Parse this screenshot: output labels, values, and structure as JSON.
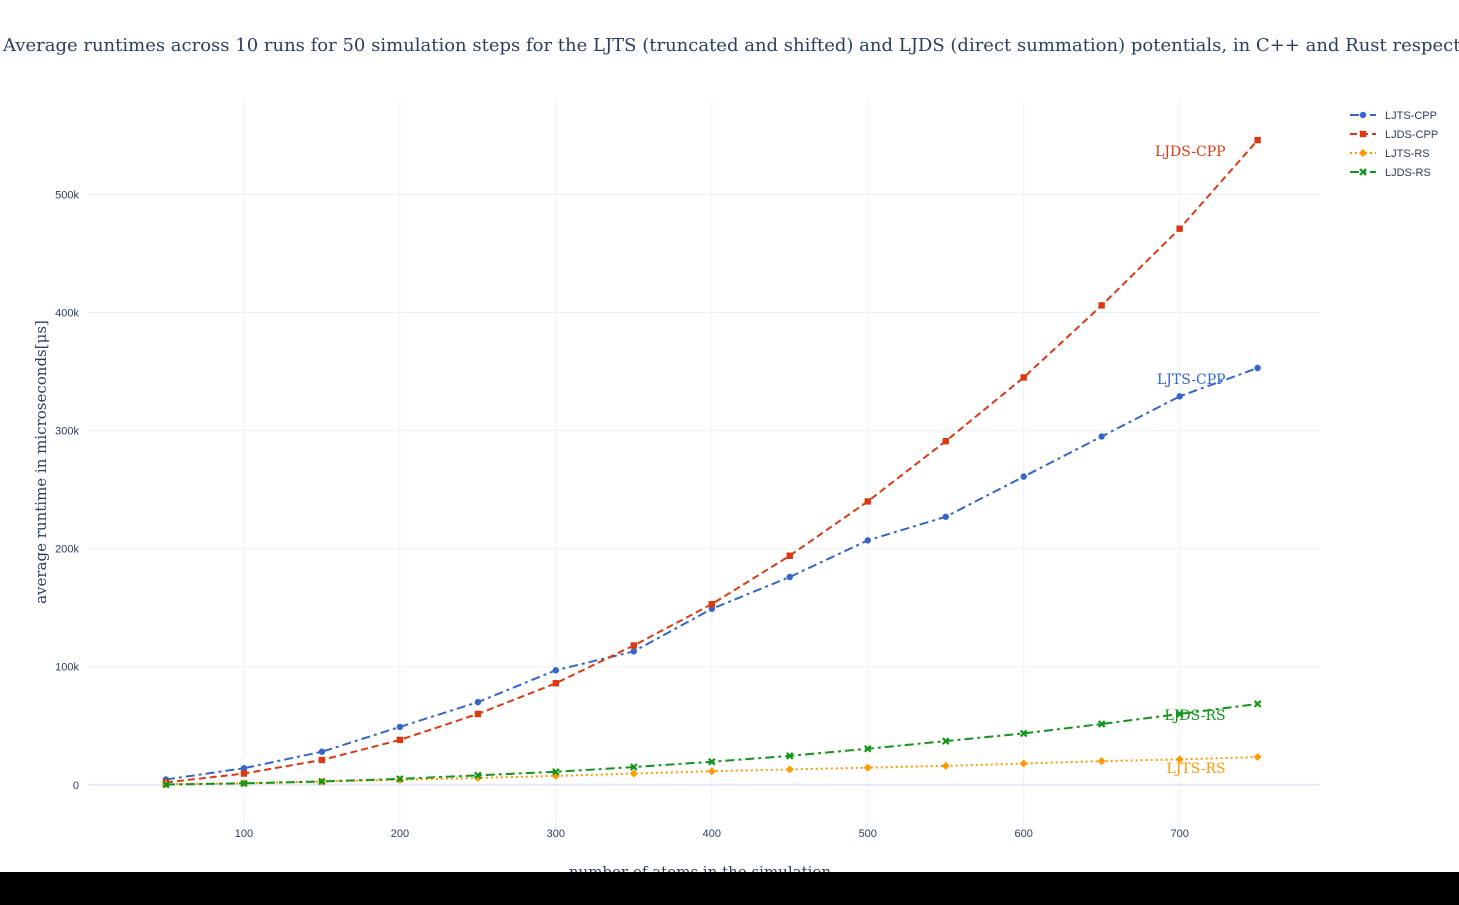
{
  "chart_data": {
    "type": "line",
    "title": "Average runtimes across 10 runs for 50 simulation steps for the LJTS (truncated and shifted) and LJDS (direct summation) potentials, in C++ and Rust respectively",
    "xlabel": "number of atoms in the simulation",
    "ylabel": "average runtime in microseconds[μs]",
    "xlim": [
      0,
      790
    ],
    "ylim": [
      -40000,
      580000
    ],
    "x_ticks": [
      100,
      200,
      300,
      400,
      500,
      600,
      700
    ],
    "y_ticks": [
      0,
      100000,
      200000,
      300000,
      400000,
      500000
    ],
    "y_tick_labels": [
      "0",
      "100k",
      "200k",
      "300k",
      "400k",
      "500k"
    ],
    "grid": true,
    "legend_position": "top-right",
    "x": [
      50,
      100,
      150,
      200,
      250,
      300,
      350,
      400,
      450,
      500,
      550,
      600,
      650,
      700,
      750
    ],
    "series": [
      {
        "name": "LJTS-CPP",
        "color": "#3366cc",
        "dash": "dashdot",
        "marker": "circle",
        "values": [
          4500,
          14000,
          28000,
          49000,
          70000,
          97000,
          113000,
          149000,
          176000,
          207000,
          227000,
          261000,
          295000,
          329000,
          353000
        ]
      },
      {
        "name": "LJDS-CPP",
        "color": "#dc3912",
        "dash": "dash",
        "marker": "square",
        "values": [
          2000,
          9500,
          21000,
          38000,
          60000,
          86000,
          118000,
          153000,
          194000,
          240000,
          291000,
          345000,
          406000,
          471000,
          546000
        ]
      },
      {
        "name": "LJTS-RS",
        "color": "#ff9900",
        "dash": "dot",
        "marker": "diamond",
        "values": [
          400,
          1300,
          2800,
          4200,
          5800,
          7500,
          9500,
          11500,
          13000,
          14500,
          16000,
          18000,
          20000,
          21500,
          23500
        ]
      },
      {
        "name": "LJDS-RS",
        "color": "#109618",
        "dash": "dashdot",
        "marker": "x",
        "values": [
          200,
          1200,
          2800,
          5000,
          8000,
          11000,
          15000,
          19500,
          24500,
          30500,
          37000,
          43500,
          51500,
          60000,
          68500
        ]
      }
    ],
    "annotations": [
      {
        "text": "LJDS-CPP",
        "x": 750,
        "y": 546000,
        "color": "#dc3912"
      },
      {
        "text": "LJTS-CPP",
        "x": 750,
        "y": 353000,
        "color": "#3366cc"
      },
      {
        "text": "LJDS-RS",
        "x": 750,
        "y": 68500,
        "color": "#109618"
      },
      {
        "text": "LJTS-RS",
        "x": 750,
        "y": 23500,
        "color": "#ff9900"
      }
    ]
  }
}
